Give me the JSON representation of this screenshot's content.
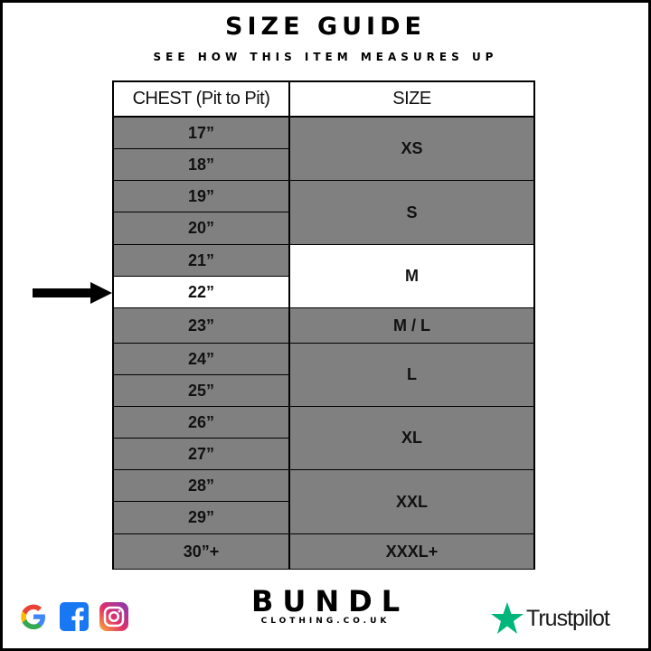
{
  "title": "SIZE GUIDE",
  "subtitle": "SEE HOW THIS ITEM MEASURES UP",
  "table": {
    "headers": [
      "CHEST (Pit to Pit)",
      "SIZE"
    ],
    "chest": [
      "17”",
      "18”",
      "19”",
      "20”",
      "21”",
      "22”",
      "23”",
      "24”",
      "25”",
      "26”",
      "27”",
      "28”",
      "29”",
      "30”+"
    ],
    "sizes": [
      "XS",
      "S",
      "M",
      "M / L",
      "L",
      "XL",
      "XXL",
      "XXXL+"
    ],
    "highlighted_chest": "22”",
    "highlighted_size": "M"
  },
  "colors": {
    "cell": "#808080",
    "highlight": "#ffffff",
    "trustpilot": "#00b67a"
  },
  "footer": {
    "brand": "BUNDL",
    "brand_sub": "CLOTHING.CO.UK",
    "trustpilot": "Trustpilot",
    "icons": [
      "google-icon",
      "facebook-icon",
      "instagram-icon"
    ]
  }
}
